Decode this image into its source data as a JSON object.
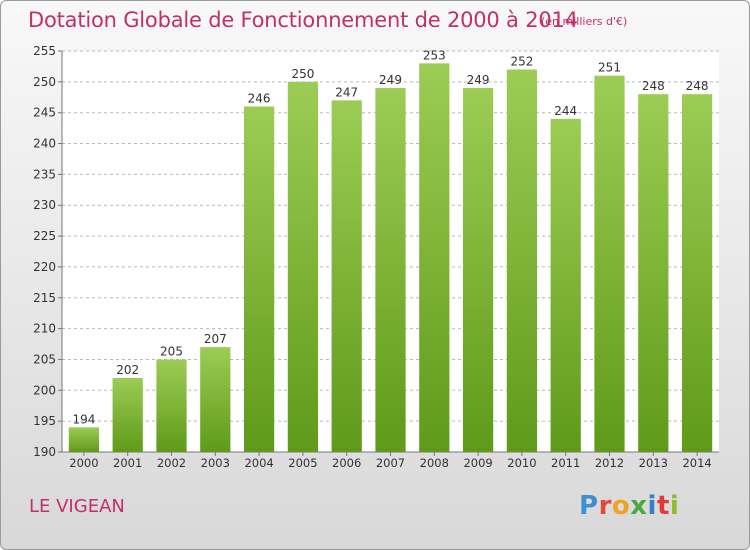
{
  "header": {
    "title": "Dotation Globale de Fonctionnement de 2000 à 2014",
    "unit": "(en milliers d'€)"
  },
  "footer": {
    "commune": "LE VIGEAN",
    "logo_letters": [
      "P",
      "r",
      "o",
      "x",
      "i",
      "t",
      "i"
    ]
  },
  "colors": {
    "bar_top": "#9ccc55",
    "bar_bottom": "#5f9a1a",
    "title": "#c0306b",
    "grid": "#b9b9b9"
  },
  "chart_data": {
    "type": "bar",
    "title": "Dotation Globale de Fonctionnement de 2000 à 2014",
    "xlabel": "",
    "ylabel": "",
    "categories": [
      "2000",
      "2001",
      "2002",
      "2003",
      "2004",
      "2005",
      "2006",
      "2007",
      "2008",
      "2009",
      "2010",
      "2011",
      "2012",
      "2013",
      "2014"
    ],
    "values": [
      194,
      202,
      205,
      207,
      246,
      250,
      247,
      249,
      253,
      249,
      252,
      244,
      251,
      248,
      248
    ],
    "ylim": [
      190,
      255
    ],
    "yticks": [
      190,
      195,
      200,
      205,
      210,
      215,
      220,
      225,
      230,
      235,
      240,
      245,
      250,
      255
    ],
    "grid": "horizontal-dashed",
    "legend": "none"
  }
}
